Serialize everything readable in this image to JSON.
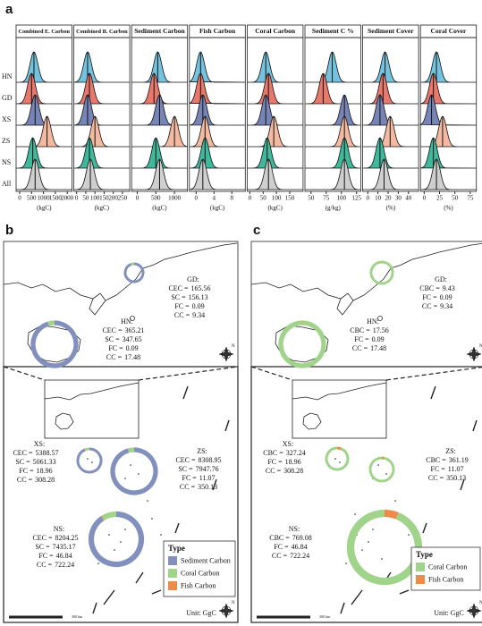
{
  "panel_a": {
    "label": "a",
    "rows": [
      "HN",
      "GD",
      "XS",
      "ZS",
      "NS",
      "All"
    ],
    "colors": [
      "#74c2de",
      "#e7786b",
      "#7784b6",
      "#f4b9a1",
      "#3fb89b",
      "#cfcfcf"
    ],
    "charts": [
      {
        "type": "ridgeline",
        "title": "Combined E. Carbon",
        "x_label": "(kgC)",
        "xlim": [
          -150,
          2200
        ],
        "xticks": [
          0,
          500,
          1000,
          1500,
          2000
        ],
        "medians": [
          600,
          500,
          650,
          1150,
          550,
          650
        ]
      },
      {
        "type": "ridgeline",
        "title": "Combined B. Carbon",
        "x_label": "(kgC)",
        "xlim": [
          -15,
          290
        ],
        "xticks": [
          0,
          50,
          100,
          150,
          200,
          250
        ],
        "medians": [
          60,
          70,
          60,
          100,
          70,
          75
        ]
      },
      {
        "type": "ridgeline",
        "title": "Sediment Carbon",
        "x_label": "(kgC)",
        "xlim": [
          -150,
          1350
        ],
        "xticks": [
          0,
          500,
          1000
        ],
        "medians": [
          550,
          450,
          600,
          1000,
          500,
          600
        ]
      },
      {
        "type": "ridgeline",
        "title": "Fish Carbon",
        "x_label": "(kgC)",
        "xlim": [
          -1.5,
          11
        ],
        "xticks": [
          0,
          4,
          8
        ],
        "medians": [
          1,
          1,
          1.5,
          2,
          2,
          1.5
        ]
      },
      {
        "type": "ridgeline",
        "title": "Coral Carbon",
        "x_label": "(kgC)",
        "xlim": [
          -10,
          200
        ],
        "xticks": [
          0,
          50,
          100,
          150
        ],
        "medians": [
          60,
          70,
          60,
          90,
          65,
          70
        ]
      },
      {
        "type": "ridgeline",
        "title": "Sediment C %",
        "x_label": "(g/kg)",
        "xlim": [
          40,
          132
        ],
        "xticks": [
          50,
          75,
          100,
          125
        ],
        "medians": [
          85,
          70,
          105,
          105,
          105,
          105
        ]
      },
      {
        "type": "ridgeline",
        "title": "Sediment Cover",
        "x_label": "(%)",
        "xlim": [
          -5,
          50
        ],
        "xticks": [
          0,
          10,
          20,
          30,
          40
        ],
        "medians": [
          17,
          15,
          12,
          22,
          12,
          16
        ]
      },
      {
        "type": "ridgeline",
        "title": "Coral Cover",
        "x_label": "(%)",
        "xlim": [
          -6,
          85
        ],
        "xticks": [
          0,
          25,
          50,
          75
        ],
        "medians": [
          20,
          15,
          12,
          30,
          15,
          20
        ]
      }
    ]
  },
  "panel_b": {
    "label": "b",
    "regions": [
      {
        "name": "GD:",
        "items": [
          {
            "key": "CEC =",
            "value": 165.56
          },
          {
            "key": "SC =",
            "value": 156.13,
            "color": "#8190bd"
          },
          {
            "key": "FC =",
            "value": 0.09,
            "color": "#ec8b4a"
          },
          {
            "key": "CC =",
            "value": 9.34,
            "color": "#9fd48a"
          }
        ]
      },
      {
        "name": "HN:",
        "items": [
          {
            "key": "CEC =",
            "value": 365.21
          },
          {
            "key": "SC =",
            "value": 347.65,
            "color": "#8190bd"
          },
          {
            "key": "FC =",
            "value": 0.09,
            "color": "#ec8b4a"
          },
          {
            "key": "CC =",
            "value": 17.48,
            "color": "#9fd48a"
          }
        ]
      },
      {
        "name": "XS:",
        "items": [
          {
            "key": "CEC =",
            "value": 5388.57
          },
          {
            "key": "SC =",
            "value": 5061.33,
            "color": "#8190bd"
          },
          {
            "key": "FC =",
            "value": 18.96,
            "color": "#ec8b4a"
          },
          {
            "key": "CC =",
            "value": 308.28,
            "color": "#9fd48a"
          }
        ]
      },
      {
        "name": "ZS:",
        "items": [
          {
            "key": "CEC =",
            "value": 8308.95
          },
          {
            "key": "SC =",
            "value": 7947.76,
            "color": "#8190bd"
          },
          {
            "key": "FC =",
            "value": 11.07,
            "color": "#ec8b4a"
          },
          {
            "key": "CC =",
            "value": 350.13,
            "color": "#9fd48a"
          }
        ]
      },
      {
        "name": "NS:",
        "items": [
          {
            "key": "CEC =",
            "value": 8204.25
          },
          {
            "key": "SC =",
            "value": 7435.17,
            "color": "#8190bd"
          },
          {
            "key": "FC =",
            "value": 46.84,
            "color": "#ec8b4a"
          },
          {
            "key": "CC =",
            "value": 722.24,
            "color": "#9fd48a"
          }
        ]
      }
    ],
    "legend": {
      "title": "Type",
      "items": [
        {
          "name": "Sediment Carbon",
          "color": "#8190bd"
        },
        {
          "name": "Coral Carbon",
          "color": "#9fd48a"
        },
        {
          "name": "Fish Carbon",
          "color": "#ec8b4a"
        }
      ]
    },
    "unit": "Unit: GgC",
    "scale_label": "300 km",
    "compass": "N"
  },
  "panel_c": {
    "label": "c",
    "regions": [
      {
        "name": "GD:",
        "items": [
          {
            "key": "CBC =",
            "value": 9.43
          },
          {
            "key": "FC =",
            "value": 0.09,
            "color": "#ec8b4a"
          },
          {
            "key": "CC =",
            "value": 9.34,
            "color": "#9fd48a"
          }
        ]
      },
      {
        "name": "HN:",
        "items": [
          {
            "key": "CBC =",
            "value": 17.56
          },
          {
            "key": "FC =",
            "value": 0.09,
            "color": "#ec8b4a"
          },
          {
            "key": "CC =",
            "value": 17.48,
            "color": "#9fd48a"
          }
        ]
      },
      {
        "name": "XS:",
        "items": [
          {
            "key": "CBC =",
            "value": 327.24
          },
          {
            "key": "FC =",
            "value": 18.96,
            "color": "#ec8b4a"
          },
          {
            "key": "CC =",
            "value": 308.28,
            "color": "#9fd48a"
          }
        ]
      },
      {
        "name": "ZS:",
        "items": [
          {
            "key": "CBC =",
            "value": 361.19
          },
          {
            "key": "FC =",
            "value": 11.07,
            "color": "#ec8b4a"
          },
          {
            "key": "CC =",
            "value": 350.13,
            "color": "#9fd48a"
          }
        ]
      },
      {
        "name": "NS:",
        "items": [
          {
            "key": "CBC =",
            "value": 769.08
          },
          {
            "key": "FC =",
            "value": 46.84,
            "color": "#ec8b4a"
          },
          {
            "key": "CC =",
            "value": 722.24,
            "color": "#9fd48a"
          }
        ]
      }
    ],
    "legend": {
      "title": "Type",
      "items": [
        {
          "name": "Coral Carbon",
          "color": "#9fd48a"
        },
        {
          "name": "Fish Carbon",
          "color": "#ec8b4a"
        }
      ]
    },
    "unit": "Unit: GgC",
    "scale_label": "300 km",
    "compass": "N"
  }
}
